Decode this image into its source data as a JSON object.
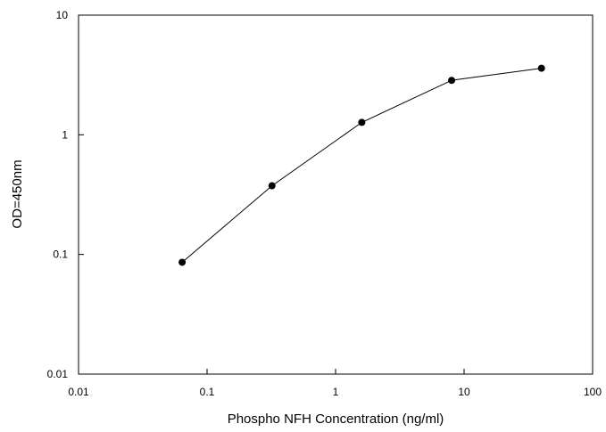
{
  "chart_data": {
    "type": "line",
    "title": "",
    "xlabel": "Phospho NFH Concentration (ng/ml)",
    "ylabel": "OD=450nm",
    "x_scale": "log",
    "y_scale": "log",
    "xlim": [
      0.01,
      100
    ],
    "ylim": [
      0.01,
      10
    ],
    "x_ticks": [
      0.01,
      0.1,
      1,
      10,
      100
    ],
    "y_ticks": [
      0.01,
      0.1,
      1,
      10
    ],
    "x_tick_labels": [
      "0.01",
      "0.1",
      "1",
      "10",
      "100"
    ],
    "y_tick_labels": [
      "0.01",
      "0.1",
      "1",
      "10"
    ],
    "grid": false,
    "legend": "none",
    "series": [
      {
        "x": [
          0.064,
          0.32,
          1.6,
          8,
          40
        ],
        "y": [
          0.086,
          0.375,
          1.27,
          2.85,
          3.6
        ],
        "color": "#000000",
        "marker": "circle"
      }
    ]
  }
}
